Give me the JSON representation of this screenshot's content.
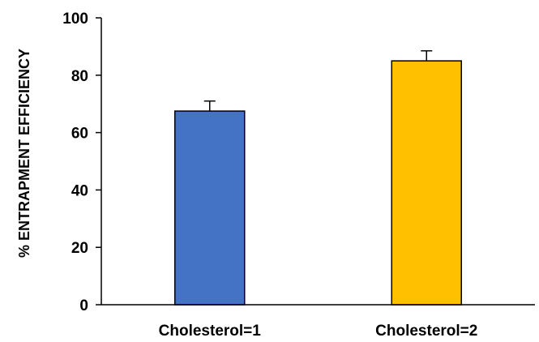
{
  "chart_data": {
    "type": "bar",
    "title": "",
    "xlabel": "",
    "ylabel": "% ENTRAPMENT EFFICIENCY",
    "ylim": [
      0,
      100
    ],
    "yticks": [
      "0",
      "20",
      "40",
      "60",
      "80",
      "100"
    ],
    "categories": [
      "Cholesterol=1",
      "Cholesterol=2"
    ],
    "values": [
      67.5,
      85
    ],
    "errors": [
      3.5,
      3.5
    ],
    "colors": [
      "#4472C4",
      "#FFC000"
    ],
    "grid": false,
    "legend": "none"
  }
}
